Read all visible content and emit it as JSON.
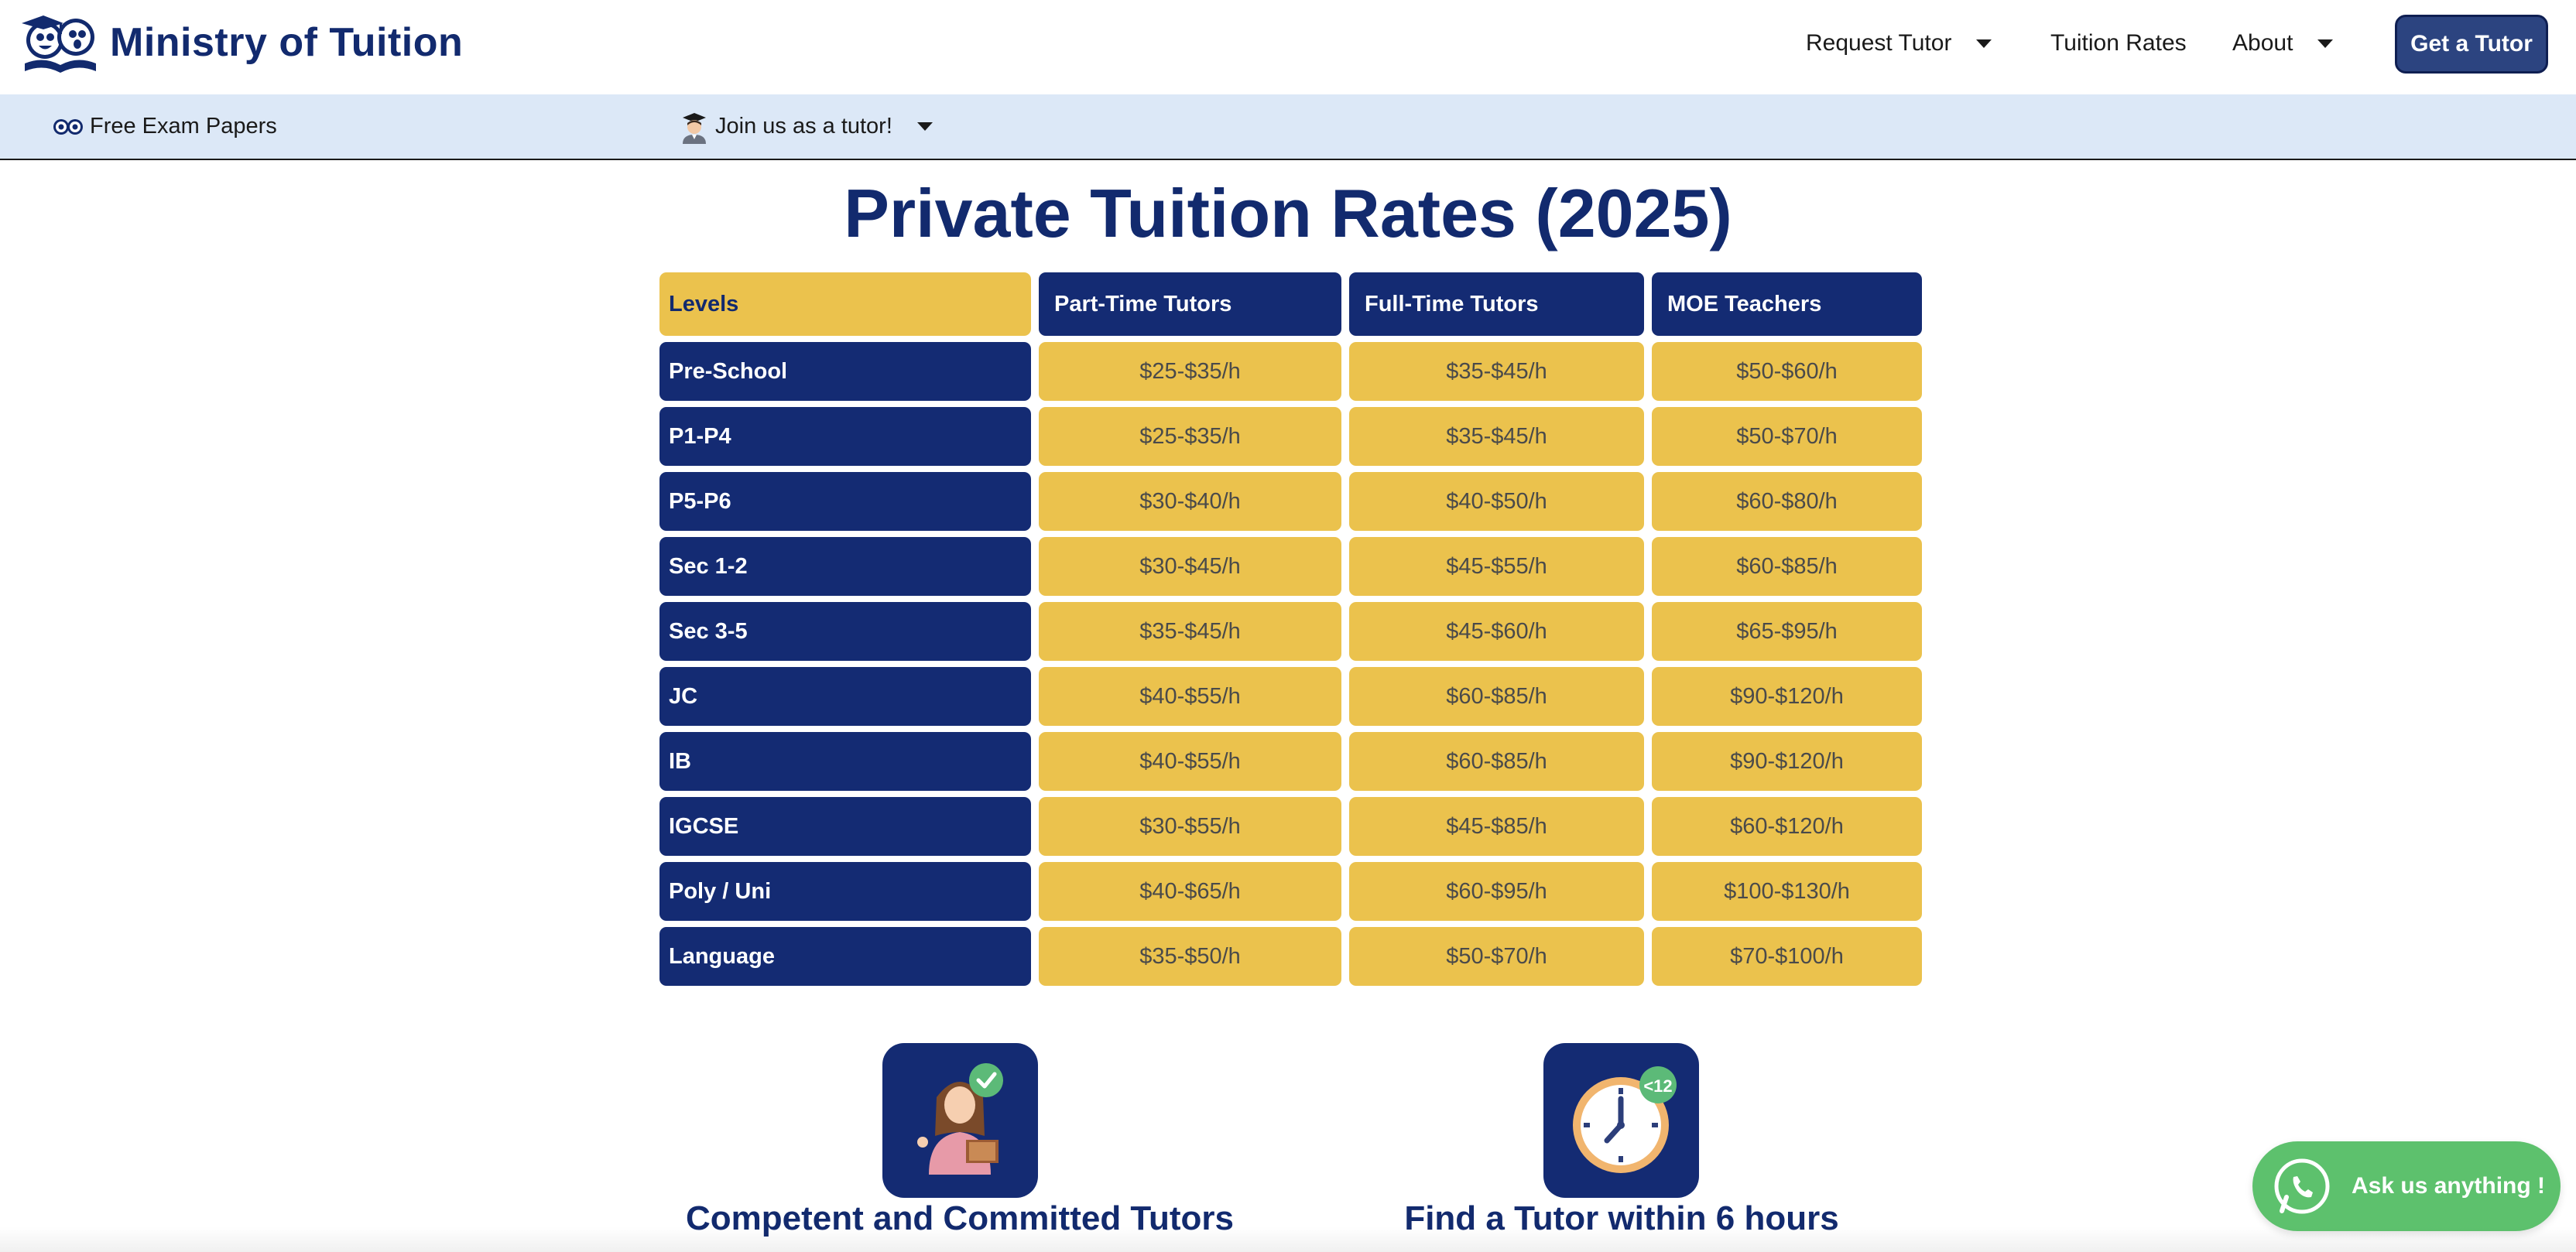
{
  "brand": {
    "name": "Ministry of Tuition",
    "icon": "owl-graduate-logo",
    "color": "#122a6e"
  },
  "nav": {
    "request_tutor": "Request Tutor",
    "tuition_rates": "Tuition Rates",
    "about": "About",
    "cta": "Get a Tutor"
  },
  "subbar": {
    "free_exam_papers": "Free Exam Papers",
    "join_tutor": "Join us as a tutor!"
  },
  "page": {
    "title": "Private Tuition Rates (2025)"
  },
  "table": {
    "headers": [
      "Levels",
      "Part-Time Tutors",
      "Full-Time Tutors",
      "MOE Teachers"
    ],
    "rows": [
      [
        "Pre-School",
        "$25-$35/h",
        "$35-$45/h",
        "$50-$60/h"
      ],
      [
        "P1-P4",
        "$25-$35/h",
        "$35-$45/h",
        "$50-$70/h"
      ],
      [
        "P5-P6",
        "$30-$40/h",
        "$40-$50/h",
        "$60-$80/h"
      ],
      [
        "Sec 1-2",
        "$30-$45/h",
        "$45-$55/h",
        "$60-$85/h"
      ],
      [
        "Sec 3-5",
        "$35-$45/h",
        "$45-$60/h",
        "$65-$95/h"
      ],
      [
        "JC",
        "$40-$55/h",
        "$60-$85/h",
        "$90-$120/h"
      ],
      [
        "IB",
        "$40-$55/h",
        "$60-$85/h",
        "$90-$120/h"
      ],
      [
        "IGCSE",
        "$30-$55/h",
        "$45-$85/h",
        "$60-$120/h"
      ],
      [
        "Poly / Uni",
        "$40-$65/h",
        "$60-$95/h",
        "$100-$130/h"
      ],
      [
        "Language",
        "$35-$50/h",
        "$50-$70/h",
        "$70-$100/h"
      ]
    ]
  },
  "features": [
    {
      "title": "Competent and Committed Tutors",
      "icon": "tutor-check-icon"
    },
    {
      "title": "Find a Tutor within 6 hours",
      "icon": "clock-icon",
      "badge": "<12"
    }
  ],
  "whatsapp": {
    "label": "Ask us anything !",
    "icon": "whatsapp-icon"
  },
  "colors": {
    "navy": "#142b73",
    "gold": "#ebc24d",
    "subbar": "#dce8f7",
    "whatsapp": "#5dc16d"
  }
}
